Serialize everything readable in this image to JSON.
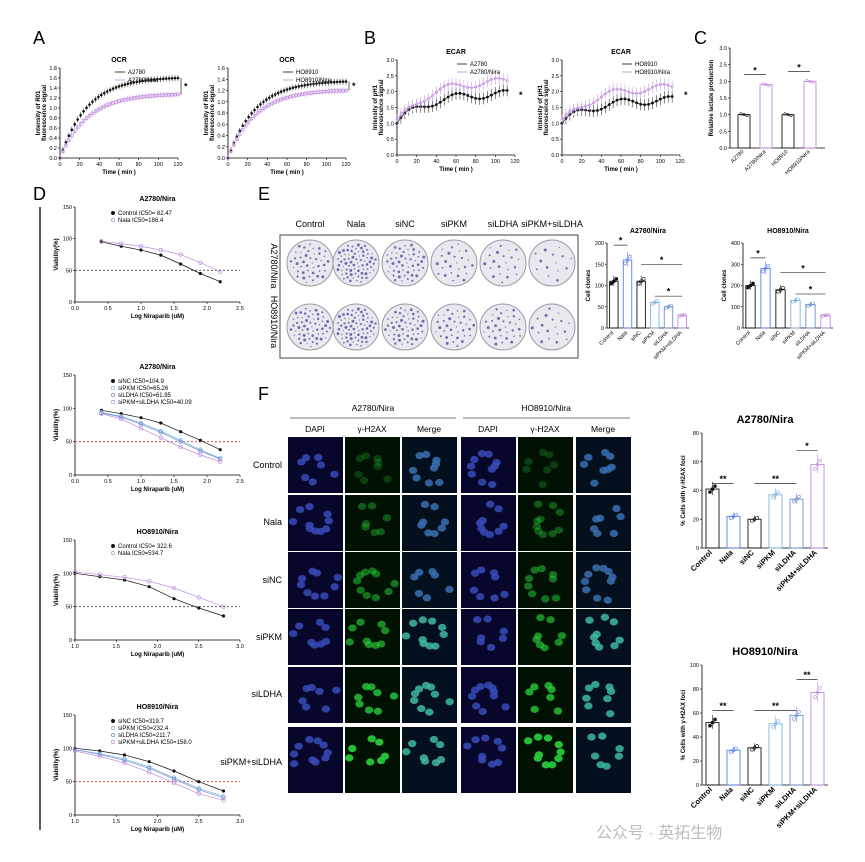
{
  "panels": {
    "A": "A",
    "B": "B",
    "C": "C",
    "D": "D",
    "E": "E",
    "F": "F"
  },
  "panelA": {
    "left": {
      "title": "OCR",
      "ylabel": "Intensity of R01\nfluorescence signal",
      "xlabel": "Time ( min )",
      "xticks": [
        "0",
        "20",
        "40",
        "60",
        "80",
        "100",
        "120"
      ],
      "yticks": [
        "0.0",
        "0.2",
        "0.4",
        "0.6",
        "0.8",
        "1.0",
        "1.2",
        "1.4",
        "1.6",
        "1.8"
      ],
      "legend": [
        "A2780",
        "A2780/Nira"
      ],
      "sig": "*"
    },
    "right": {
      "title": "OCR",
      "ylabel": "Intensity of R01\nfluorescence signal",
      "xlabel": "Time ( min )",
      "xticks": [
        "0",
        "20",
        "40",
        "60",
        "80",
        "100",
        "120"
      ],
      "yticks": [
        "0.0",
        "0.2",
        "0.4",
        "0.6",
        "0.8",
        "1.0",
        "1.2",
        "1.4",
        "1.6"
      ],
      "legend": [
        "HO8910",
        "HO8910/Nira"
      ],
      "sig": "*"
    }
  },
  "panelB": {
    "left": {
      "title": "ECAR",
      "ylabel": "Intensity of pH1\nfluorescence signal",
      "xlabel": "Time ( min )",
      "xticks": [
        "0",
        "20",
        "40",
        "60",
        "80",
        "100",
        "120"
      ],
      "yticks": [
        "0.0",
        "0.5",
        "1.0",
        "1.5",
        "2.0",
        "2.5",
        "3.0"
      ],
      "legend": [
        "A2780",
        "A2780/Nira"
      ],
      "sig": "*"
    },
    "right": {
      "title": "ECAR",
      "ylabel": "Intensity of pH1\nfluorescence signal",
      "xlabel": "Time ( min )",
      "xticks": [
        "0",
        "20",
        "40",
        "60",
        "80",
        "100",
        "120"
      ],
      "yticks": [
        "0.0",
        "0.5",
        "1.0",
        "1.5",
        "2.0",
        "2.5",
        "3.0"
      ],
      "legend": [
        "HO8910",
        "HO8910/Nira"
      ],
      "sig": "*"
    }
  },
  "panelC": {
    "ylabel": "Relative lactate production",
    "yticks": [
      "0.0",
      "0.5",
      "1.0",
      "1.5",
      "2.0",
      "2.5",
      "3.0"
    ],
    "categories": [
      "A2780",
      "A2780/Nira",
      "HO8910",
      "HO8910/Nira"
    ],
    "sig": [
      "*",
      "*"
    ]
  },
  "panelD": [
    {
      "title": "A2780/Nira",
      "legend": [
        "Control IC50= 82.47",
        "Nala IC50=186.4"
      ],
      "xlabel": "Log Niraparib (uM)",
      "ylabel": "Viability(%)",
      "xticks": [
        "0.0",
        "0.5",
        "1.0",
        "1.5",
        "2.0",
        "2.5"
      ],
      "yticks": [
        "0",
        "50",
        "100",
        "150"
      ]
    },
    {
      "title": "A2780/Nira",
      "legend": [
        "siNC IC50=104.9",
        "siPKM IC50=65.26",
        "siLDHA IC50=61.95",
        "siPKM+siLDHA IC50=40.09"
      ],
      "xlabel": "Log Niraparib (uM)",
      "ylabel": "Viability(%)",
      "xticks": [
        "0.0",
        "0.5",
        "1.0",
        "1.5",
        "2.0",
        "2.5"
      ],
      "yticks": [
        "0",
        "50",
        "100",
        "150"
      ]
    },
    {
      "title": "HO8910/Nira",
      "legend": [
        "Control IC50= 322.6",
        "Nala IC50=534.7"
      ],
      "xlabel": "Log Niraparib (uM)",
      "ylabel": "Viability(%)",
      "xticks": [
        "1.0",
        "1.5",
        "2.0",
        "2.5",
        "3.0"
      ],
      "yticks": [
        "0",
        "50",
        "100",
        "150"
      ]
    },
    {
      "title": "HO8910/Nira",
      "legend": [
        "siNC IC50=319.7",
        "siPKM IC50=232.4",
        "siLDHA IC50=211.7",
        "siPKM+siLDHA IC50=158.0"
      ],
      "xlabel": "Log Niraparib (uM)",
      "ylabel": "Viability(%)",
      "xticks": [
        "1.0",
        "1.5",
        "2.0",
        "2.5",
        "3.0"
      ],
      "yticks": [
        "0",
        "50",
        "100",
        "150"
      ]
    }
  ],
  "panelE": {
    "cols": [
      "Control",
      "Nala",
      "siNC",
      "siPKM",
      "siLDHA",
      "siPKM+siLDHA"
    ],
    "rows": [
      "A2780/Nira",
      "HO8910/Nira"
    ],
    "bars": [
      {
        "title": "A2780/Nira",
        "ylabel": "Cell clones",
        "yticks": [
          "0",
          "50",
          "100",
          "150",
          "200"
        ],
        "categories": [
          "Control",
          "Nala",
          "siNC",
          "siPKM",
          "siLDHA",
          "siPKM+siLDHA"
        ],
        "sig": [
          "*",
          "*",
          "*"
        ]
      },
      {
        "title": "HO8910/Nira",
        "ylabel": "Cell clones",
        "yticks": [
          "0",
          "100",
          "200",
          "300",
          "400"
        ],
        "categories": [
          "Control",
          "Nala",
          "siNC",
          "siPKM",
          "siLDHA",
          "siPKM+siLDHA"
        ],
        "sig": [
          "*",
          "*",
          "*"
        ]
      }
    ]
  },
  "panelF": {
    "groups": [
      "A2780/Nira",
      "HO8910/Nira"
    ],
    "channels": [
      "DAPI",
      "γ-H2AX",
      "Merge"
    ],
    "rows": [
      "Control",
      "Nala",
      "siNC",
      "siPKM",
      "siLDHA",
      "siPKM+siLDHA"
    ],
    "bars": [
      {
        "title": "A2780/Nira",
        "ylabel": "% Cells with γ-H2AX foci",
        "yticks": [
          "0",
          "20",
          "40",
          "60",
          "80"
        ],
        "categories": [
          "Control",
          "Nala",
          "siNC",
          "siPKM",
          "siLDHA",
          "siPKM+siLDHA"
        ],
        "sig": [
          "**",
          "**",
          "*"
        ]
      },
      {
        "title": "HO8910/Nira",
        "ylabel": "% Cells with γ-H2AX foci",
        "yticks": [
          "0",
          "20",
          "40",
          "60",
          "80",
          "100"
        ],
        "categories": [
          "Control",
          "Nala",
          "siNC",
          "siPKM",
          "siLDHA",
          "siPKM+siLDHA"
        ],
        "sig": [
          "**",
          "**",
          "**"
        ]
      }
    ]
  },
  "watermark": "公众号 · 英拓生物",
  "chart_data": [
    {
      "type": "scatter",
      "panel": "A-left",
      "title": "OCR",
      "xlabel": "Time ( min )",
      "ylabel": "Intensity of R01 fluorescence signal",
      "ylim": [
        0,
        1.8
      ],
      "x": [
        0,
        20,
        40,
        60,
        80,
        100,
        120
      ],
      "series": [
        {
          "name": "A2780",
          "values": [
            0,
            0.95,
            1.25,
            1.4,
            1.5,
            1.56,
            1.6
          ]
        },
        {
          "name": "A2780/Nira",
          "values": [
            0,
            0.85,
            1.05,
            1.15,
            1.2,
            1.24,
            1.27
          ]
        }
      ]
    },
    {
      "type": "scatter",
      "panel": "A-right",
      "title": "OCR",
      "xlabel": "Time ( min )",
      "ylabel": "Intensity of R01 fluorescence signal",
      "ylim": [
        0,
        1.6
      ],
      "x": [
        0,
        20,
        40,
        60,
        80,
        100,
        120
      ],
      "series": [
        {
          "name": "HO8910",
          "values": [
            0,
            0.75,
            1.05,
            1.2,
            1.28,
            1.33,
            1.36
          ]
        },
        {
          "name": "HO8910/Nira",
          "values": [
            0,
            0.7,
            0.95,
            1.05,
            1.12,
            1.17,
            1.2
          ]
        }
      ]
    },
    {
      "type": "line",
      "panel": "B-left",
      "title": "ECAR",
      "xlabel": "Time ( min )",
      "ylabel": "Intensity of pH1 fluorescence signal",
      "ylim": [
        0,
        3.0
      ],
      "x": [
        0,
        20,
        40,
        60,
        80,
        100,
        120
      ],
      "series": [
        {
          "name": "A2780",
          "values": [
            1.0,
            1.3,
            1.6,
            1.8,
            1.9,
            1.9,
            1.95
          ]
        },
        {
          "name": "A2780/Nira",
          "values": [
            1.0,
            1.5,
            1.9,
            2.1,
            2.2,
            2.3,
            2.35
          ]
        }
      ]
    },
    {
      "type": "line",
      "panel": "B-right",
      "title": "ECAR",
      "xlabel": "Time ( min )",
      "ylabel": "Intensity of pH1 fluorescence signal",
      "ylim": [
        0,
        3.0
      ],
      "x": [
        0,
        20,
        40,
        60,
        80,
        100,
        120
      ],
      "series": [
        {
          "name": "HO8910",
          "values": [
            1.0,
            1.3,
            1.5,
            1.6,
            1.7,
            1.7,
            1.75
          ]
        },
        {
          "name": "HO8910/Nira",
          "values": [
            1.0,
            1.5,
            1.8,
            2.0,
            2.1,
            2.1,
            2.15
          ]
        }
      ]
    },
    {
      "type": "bar",
      "panel": "C",
      "ylabel": "Relative lactate production",
      "ylim": [
        0,
        3.0
      ],
      "categories": [
        "A2780",
        "A2780/Nira",
        "HO8910",
        "HO8910/Nira"
      ],
      "values": [
        1.0,
        1.9,
        1.0,
        2.0
      ]
    },
    {
      "type": "scatter",
      "panel": "D1",
      "title": "A2780/Nira",
      "xlabel": "Log Niraparib (uM)",
      "ylabel": "Viability(%)",
      "ylim": [
        0,
        150
      ],
      "x": [
        0.4,
        0.7,
        1.0,
        1.3,
        1.6,
        1.9,
        2.2
      ],
      "series": [
        {
          "name": "Control IC50= 82.47",
          "values": [
            95,
            88,
            82,
            74,
            60,
            45,
            32
          ]
        },
        {
          "name": "Nala IC50=186.4",
          "values": [
            96,
            92,
            88,
            82,
            75,
            62,
            48
          ]
        }
      ]
    },
    {
      "type": "scatter",
      "panel": "D2",
      "title": "A2780/Nira",
      "xlabel": "Log Niraparib (uM)",
      "ylabel": "Viability(%)",
      "ylim": [
        0,
        150
      ],
      "x": [
        0.4,
        0.7,
        1.0,
        1.3,
        1.6,
        1.9,
        2.2
      ],
      "series": [
        {
          "name": "siNC IC50=104.9",
          "values": [
            97,
            92,
            86,
            78,
            65,
            52,
            38
          ]
        },
        {
          "name": "siPKM IC50=65.26",
          "values": [
            94,
            88,
            78,
            66,
            52,
            38,
            25
          ]
        },
        {
          "name": "siLDHA IC50=61.95",
          "values": [
            93,
            87,
            76,
            64,
            50,
            36,
            24
          ]
        },
        {
          "name": "siPKM+siLDHA IC50=40.09",
          "values": [
            92,
            84,
            70,
            56,
            42,
            30,
            20
          ]
        }
      ]
    },
    {
      "type": "scatter",
      "panel": "D3",
      "title": "HO8910/Nira",
      "xlabel": "Log Niraparib (uM)",
      "ylabel": "Viability(%)",
      "ylim": [
        0,
        150
      ],
      "x": [
        1.0,
        1.3,
        1.6,
        1.9,
        2.2,
        2.5,
        2.8
      ],
      "series": [
        {
          "name": "Control IC50= 322.6",
          "values": [
            100,
            95,
            90,
            80,
            62,
            48,
            36
          ]
        },
        {
          "name": "Nala IC50=534.7",
          "values": [
            102,
            98,
            94,
            88,
            78,
            64,
            50
          ]
        }
      ]
    },
    {
      "type": "scatter",
      "panel": "D4",
      "title": "HO8910/Nira",
      "xlabel": "Log Niraparib (uM)",
      "ylabel": "Viability(%)",
      "ylim": [
        0,
        150
      ],
      "x": [
        1.0,
        1.3,
        1.6,
        1.9,
        2.2,
        2.5,
        2.8
      ],
      "series": [
        {
          "name": "siNC IC50=319.7",
          "values": [
            100,
            96,
            90,
            80,
            66,
            50,
            36
          ]
        },
        {
          "name": "siPKM IC50=232.4",
          "values": [
            98,
            92,
            84,
            72,
            56,
            40,
            28
          ]
        },
        {
          "name": "siLDHA IC50=211.7",
          "values": [
            98,
            91,
            82,
            70,
            54,
            38,
            26
          ]
        },
        {
          "name": "siPKM+siLDHA IC50=158.0",
          "values": [
            96,
            88,
            78,
            64,
            48,
            32,
            22
          ]
        }
      ]
    },
    {
      "type": "bar",
      "panel": "E-left",
      "title": "A2780/Nira",
      "ylabel": "Cell clones",
      "ylim": [
        0,
        200
      ],
      "categories": [
        "Control",
        "Nala",
        "siNC",
        "siPKM",
        "siLDHA",
        "siPKM+siLDHA"
      ],
      "values": [
        110,
        160,
        110,
        60,
        50,
        30
      ]
    },
    {
      "type": "bar",
      "panel": "E-right",
      "title": "HO8910/Nira",
      "ylabel": "Cell clones",
      "ylim": [
        0,
        400
      ],
      "categories": [
        "Control",
        "Nala",
        "siNC",
        "siPKM",
        "siLDHA",
        "siPKM+siLDHA"
      ],
      "values": [
        200,
        280,
        180,
        130,
        110,
        60
      ]
    },
    {
      "type": "bar",
      "panel": "F-top",
      "title": "A2780/Nira",
      "ylabel": "% Cells with γ-H2AX foci",
      "ylim": [
        0,
        80
      ],
      "categories": [
        "Control",
        "Nala",
        "siNC",
        "siPKM",
        "siLDHA",
        "siPKM+siLDHA"
      ],
      "values": [
        41,
        22,
        20,
        37,
        34,
        58
      ]
    },
    {
      "type": "bar",
      "panel": "F-bottom",
      "title": "HO8910/Nira",
      "ylabel": "% Cells with γ-H2AX foci",
      "ylim": [
        0,
        100
      ],
      "categories": [
        "Control",
        "Nala",
        "siNC",
        "siPKM",
        "siLDHA",
        "siPKM+siLDHA"
      ],
      "values": [
        52,
        29,
        31,
        51,
        58,
        77
      ]
    }
  ]
}
